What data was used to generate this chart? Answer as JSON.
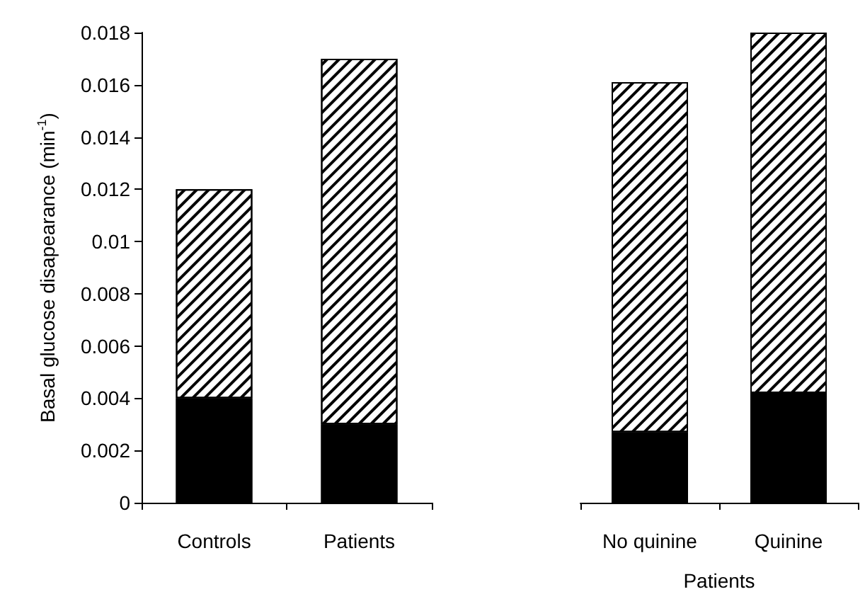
{
  "chart_data": [
    {
      "type": "bar",
      "ylabel": "Basal glucose disapearance (min$^{-1}$)",
      "categories": [
        "Controls",
        "Patients"
      ],
      "stacked": true,
      "ylim": [
        0,
        0.018
      ],
      "yticks": [
        0,
        0.002,
        0.004,
        0.006,
        0.008,
        0.01,
        0.012,
        0.014,
        0.016,
        0.018
      ],
      "series": [
        {
          "color": "#000000",
          "values": [
            0.004,
            0.003
          ]
        },
        {
          "color": "#ffffff",
          "values": [
            0.008,
            0.014
          ]
        }
      ]
    },
    {
      "type": "bar",
      "xlabel": "Patients",
      "categories": [
        "No quinine",
        "Quinine"
      ],
      "stacked": true,
      "ylim": [
        0,
        0.018
      ],
      "yticks": [
        0,
        0.002,
        0.004,
        0.006,
        0.008,
        0.01,
        0.012,
        0.014,
        0.016,
        0.018
      ],
      "tick_labels": "x",
      "series": [
        {
          "color": "#000000",
          "values": [
            0.0027,
            0.0042
          ]
        },
        {
          "color": "#ffffff",
          "values": [
            0.0134,
            0.0138
          ]
        }
      ]
    }
  ]
}
